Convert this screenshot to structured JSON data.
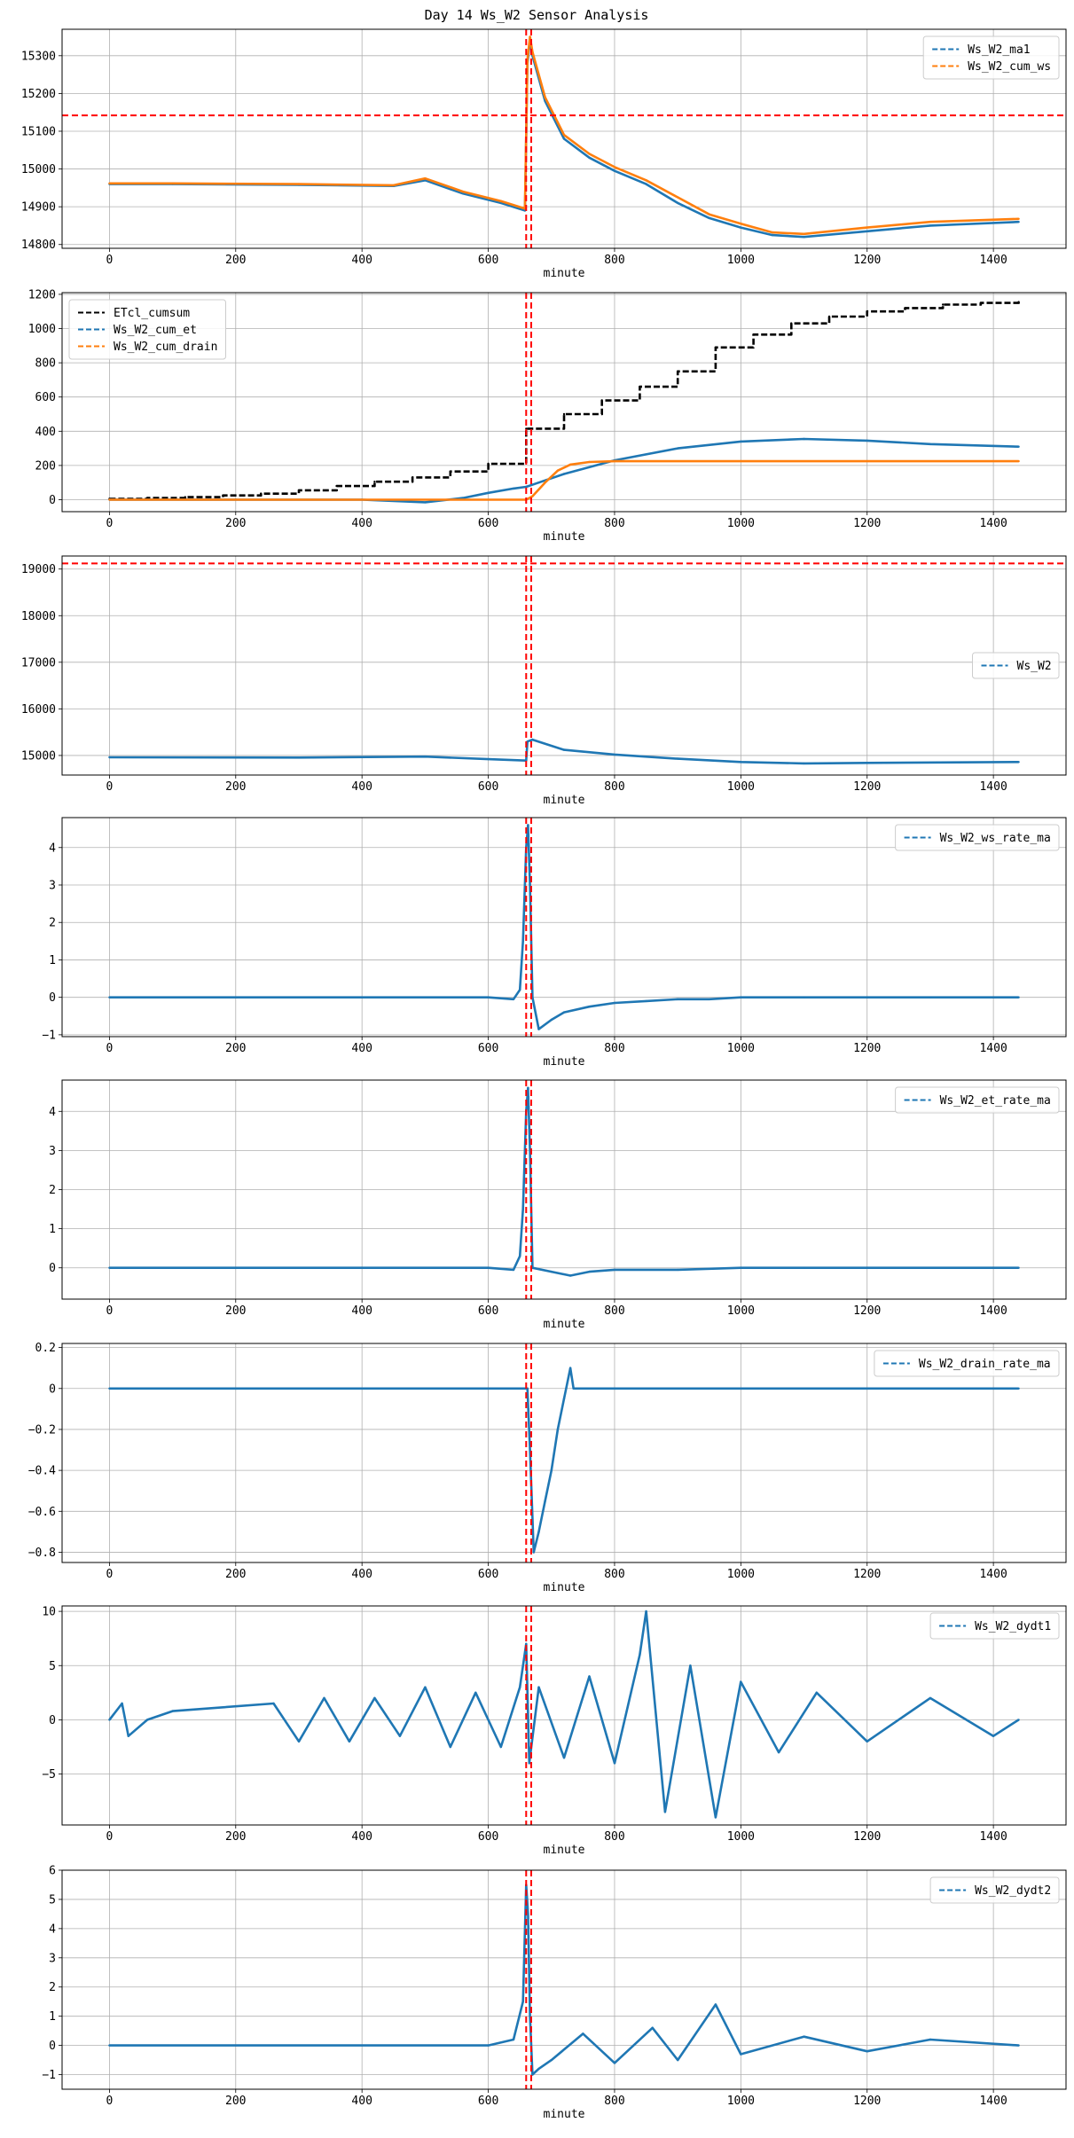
{
  "title": "Day 14 Ws_W2 Sensor Analysis",
  "colors": {
    "blue": "#1f77b4",
    "orange": "#ff7f0e",
    "black": "#000000",
    "red": "#ff0000",
    "grid": "#b0b0b0"
  },
  "chart_data": [
    {
      "type": "line",
      "xlabel": "minute",
      "xlim": [
        -75,
        1515
      ],
      "ylim": [
        14790,
        15370
      ],
      "xticks": [
        0,
        200,
        400,
        600,
        800,
        1000,
        1200,
        1400
      ],
      "yticks": [
        14800,
        14900,
        15000,
        15100,
        15200,
        15300
      ],
      "vlines": [
        660,
        668
      ],
      "hlines": [
        15142
      ],
      "legend": "top-right",
      "grid": true,
      "series": [
        {
          "name": "Ws_W2_ma1",
          "color": "#1f77b4",
          "x": [
            0,
            100,
            300,
            450,
            500,
            560,
            620,
            658,
            662,
            666,
            670,
            690,
            720,
            760,
            800,
            850,
            900,
            950,
            1000,
            1050,
            1100,
            1200,
            1300,
            1440
          ],
          "y": [
            14960,
            14960,
            14958,
            14955,
            14970,
            14935,
            14910,
            14890,
            15280,
            15340,
            15300,
            15180,
            15080,
            15030,
            14995,
            14960,
            14910,
            14870,
            14845,
            14825,
            14820,
            14835,
            14850,
            14860
          ]
        },
        {
          "name": "Ws_W2_cum_ws",
          "color": "#ff7f0e",
          "x": [
            0,
            100,
            300,
            450,
            500,
            560,
            620,
            658,
            662,
            666,
            670,
            690,
            720,
            760,
            800,
            850,
            900,
            950,
            1000,
            1050,
            1100,
            1200,
            1300,
            1440
          ],
          "y": [
            14962,
            14962,
            14960,
            14957,
            14975,
            14940,
            14915,
            14895,
            15290,
            15350,
            15310,
            15190,
            15090,
            15040,
            15005,
            14970,
            14925,
            14880,
            14855,
            14832,
            14828,
            14845,
            14860,
            14868
          ]
        }
      ]
    },
    {
      "type": "line",
      "xlabel": "minute",
      "xlim": [
        -75,
        1515
      ],
      "ylim": [
        -70,
        1210
      ],
      "xticks": [
        0,
        200,
        400,
        600,
        800,
        1000,
        1200,
        1400
      ],
      "yticks": [
        0,
        200,
        400,
        600,
        800,
        1000,
        1200
      ],
      "vlines": [
        660,
        668
      ],
      "legend": "top-left",
      "grid": true,
      "series": [
        {
          "name": "ETcl_cumsum",
          "color": "#000000",
          "step": true,
          "x": [
            0,
            60,
            120,
            180,
            240,
            300,
            360,
            420,
            480,
            540,
            600,
            660,
            720,
            780,
            840,
            900,
            960,
            1020,
            1080,
            1140,
            1200,
            1260,
            1320,
            1380,
            1440
          ],
          "y": [
            5,
            10,
            15,
            25,
            35,
            55,
            80,
            105,
            130,
            165,
            210,
            415,
            500,
            580,
            660,
            750,
            890,
            965,
            1030,
            1070,
            1100,
            1120,
            1140,
            1150,
            1155
          ]
        },
        {
          "name": "Ws_W2_cum_et",
          "color": "#1f77b4",
          "x": [
            0,
            200,
            400,
            500,
            560,
            600,
            640,
            660,
            680,
            720,
            800,
            900,
            1000,
            1100,
            1200,
            1300,
            1440
          ],
          "y": [
            0,
            0,
            0,
            -15,
            10,
            40,
            65,
            75,
            100,
            150,
            230,
            300,
            340,
            355,
            345,
            325,
            310
          ]
        },
        {
          "name": "Ws_W2_cum_drain",
          "color": "#ff7f0e",
          "x": [
            0,
            660,
            670,
            690,
            710,
            730,
            760,
            800,
            1440
          ],
          "y": [
            0,
            0,
            20,
            100,
            170,
            205,
            220,
            225,
            225
          ]
        }
      ]
    },
    {
      "type": "line",
      "xlabel": "minute",
      "xlim": [
        -75,
        1515
      ],
      "ylim": [
        14580,
        19280
      ],
      "xticks": [
        0,
        200,
        400,
        600,
        800,
        1000,
        1200,
        1400
      ],
      "yticks": [
        15000,
        16000,
        17000,
        18000,
        19000
      ],
      "vlines": [
        660,
        668
      ],
      "hlines": [
        19120
      ],
      "legend": "center-right",
      "grid": true,
      "series": [
        {
          "name": "Ws_W2",
          "color": "#1f77b4",
          "x": [
            0,
            300,
            500,
            600,
            660,
            662,
            670,
            720,
            800,
            900,
            1000,
            1100,
            1200,
            1440
          ],
          "y": [
            14960,
            14955,
            14975,
            14920,
            14890,
            15300,
            15340,
            15120,
            15020,
            14930,
            14860,
            14830,
            14840,
            14860
          ]
        }
      ]
    },
    {
      "type": "line",
      "xlabel": "minute",
      "xlim": [
        -75,
        1515
      ],
      "ylim": [
        -1.05,
        4.8
      ],
      "xticks": [
        0,
        200,
        400,
        600,
        800,
        1000,
        1200,
        1400
      ],
      "yticks": [
        -1,
        0,
        1,
        2,
        3,
        4
      ],
      "vlines": [
        660,
        668
      ],
      "legend": "top-right",
      "grid": true,
      "series": [
        {
          "name": "Ws_W2_ws_rate_ma",
          "color": "#1f77b4",
          "x": [
            0,
            600,
            640,
            650,
            655,
            660,
            663,
            666,
            670,
            680,
            700,
            720,
            760,
            800,
            850,
            900,
            950,
            1000,
            1100,
            1200,
            1300,
            1440
          ],
          "y": [
            0,
            0,
            -0.05,
            0.2,
            1.5,
            4.0,
            4.6,
            3.0,
            0.0,
            -0.85,
            -0.6,
            -0.4,
            -0.25,
            -0.15,
            -0.1,
            -0.05,
            -0.05,
            0.0,
            0.0,
            0.0,
            0.0,
            0.0
          ]
        }
      ]
    },
    {
      "type": "line",
      "xlabel": "minute",
      "xlim": [
        -75,
        1515
      ],
      "ylim": [
        -0.8,
        4.8
      ],
      "xticks": [
        0,
        200,
        400,
        600,
        800,
        1000,
        1200,
        1400
      ],
      "yticks": [
        0,
        1,
        2,
        3,
        4
      ],
      "vlines": [
        660,
        668
      ],
      "legend": "top-right",
      "grid": true,
      "series": [
        {
          "name": "Ws_W2_et_rate_ma",
          "color": "#1f77b4",
          "x": [
            0,
            600,
            640,
            650,
            655,
            660,
            663,
            666,
            670,
            700,
            730,
            760,
            800,
            900,
            1000,
            1100,
            1200,
            1440
          ],
          "y": [
            0,
            0,
            -0.05,
            0.3,
            1.5,
            4.0,
            4.6,
            3.0,
            0.0,
            -0.1,
            -0.2,
            -0.1,
            -0.05,
            -0.05,
            0.0,
            0.0,
            0.0,
            0.0
          ]
        }
      ]
    },
    {
      "type": "line",
      "xlabel": "minute",
      "xlim": [
        -75,
        1515
      ],
      "ylim": [
        -0.85,
        0.22
      ],
      "xticks": [
        0,
        200,
        400,
        600,
        800,
        1000,
        1200,
        1400
      ],
      "yticks": [
        -0.8,
        -0.6,
        -0.4,
        -0.2,
        0.0,
        0.2
      ],
      "vlines": [
        660,
        668
      ],
      "legend": "top-right",
      "grid": true,
      "series": [
        {
          "name": "Ws_W2_drain_rate_ma",
          "color": "#1f77b4",
          "x": [
            0,
            662,
            666,
            672,
            680,
            690,
            700,
            710,
            720,
            730,
            735,
            1440
          ],
          "y": [
            0,
            0,
            -0.3,
            -0.8,
            -0.7,
            -0.55,
            -0.4,
            -0.2,
            -0.05,
            0.1,
            0,
            0
          ]
        }
      ]
    },
    {
      "type": "line",
      "xlabel": "minute",
      "xlim": [
        -75,
        1515
      ],
      "ylim": [
        -9.7,
        10.5
      ],
      "xticks": [
        0,
        200,
        400,
        600,
        800,
        1000,
        1200,
        1400
      ],
      "yticks": [
        -5,
        0,
        5,
        10
      ],
      "vlines": [
        660,
        668
      ],
      "legend": "top-right",
      "grid": true,
      "series": [
        {
          "name": "Ws_W2_dydt1",
          "color": "#1f77b4",
          "x": [
            0,
            20,
            30,
            60,
            100,
            260,
            300,
            340,
            380,
            420,
            460,
            500,
            540,
            580,
            620,
            650,
            660,
            665,
            680,
            720,
            760,
            800,
            840,
            850,
            880,
            920,
            960,
            1000,
            1060,
            1120,
            1200,
            1300,
            1400,
            1440
          ],
          "y": [
            0,
            1.5,
            -1.5,
            0,
            0.8,
            1.5,
            -2,
            2,
            -2,
            2,
            -1.5,
            3,
            -2.5,
            2.5,
            -2.5,
            3,
            7,
            -4,
            3,
            -3.5,
            4,
            -4,
            6,
            10,
            -8.5,
            5,
            -9,
            3.5,
            -3,
            2.5,
            -2,
            2,
            -1.5,
            0
          ]
        }
      ]
    },
    {
      "type": "line",
      "xlabel": "minute",
      "xlim": [
        -75,
        1515
      ],
      "ylim": [
        -1.5,
        6.0
      ],
      "xticks": [
        0,
        200,
        400,
        600,
        800,
        1000,
        1200,
        1400
      ],
      "yticks": [
        -1,
        0,
        1,
        2,
        3,
        4,
        5,
        6
      ],
      "vlines": [
        660,
        668
      ],
      "legend": "top-right",
      "grid": true,
      "series": [
        {
          "name": "Ws_W2_dydt2",
          "color": "#1f77b4",
          "x": [
            0,
            600,
            640,
            655,
            660,
            663,
            666,
            670,
            680,
            700,
            750,
            800,
            860,
            900,
            960,
            1000,
            1100,
            1200,
            1300,
            1440
          ],
          "y": [
            0,
            0,
            0.2,
            1.5,
            5.5,
            4.5,
            1.0,
            -1.0,
            -0.8,
            -0.5,
            0.4,
            -0.6,
            0.6,
            -0.5,
            1.4,
            -0.3,
            0.3,
            -0.2,
            0.2,
            0
          ]
        }
      ]
    }
  ]
}
